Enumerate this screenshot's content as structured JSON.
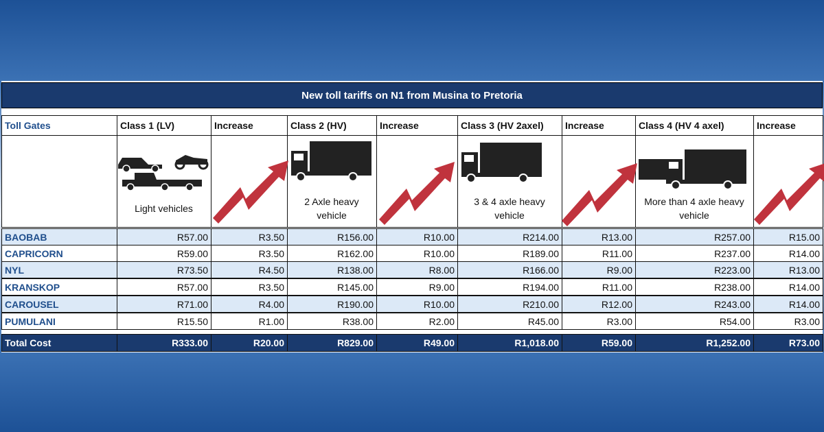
{
  "title": "New toll tariffs on N1 from Musina to Pretoria",
  "table": {
    "header": [
      "Toll Gates",
      "Class 1 (LV)",
      "Increase",
      "Class 2  (HV)",
      "Increase",
      "Class 3 (HV 2axel)",
      "Increase",
      "Class 4 (HV 4 axel)",
      "Increase"
    ],
    "vehicles": [
      "Light vehicles",
      "2 Axle heavy vehicle",
      "3 & 4 axle heavy vehicle",
      "More than 4 axle heavy vehicle"
    ],
    "class_4_label": "Class 4",
    "rows": [
      [
        "BAOBAB",
        "R57.00",
        "R3.50",
        "R156.00",
        "R10.00",
        "R214.00",
        "R13.00",
        "R257.00",
        "R15.00"
      ],
      [
        "CAPRICORN",
        "R59.00",
        "R3.50",
        "R162.00",
        "R10.00",
        "R189.00",
        "R11.00",
        "R237.00",
        "R14.00"
      ],
      [
        "NYL",
        "R73.50",
        "R4.50",
        "R138.00",
        "R8.00",
        "R166.00",
        "R9.00",
        "R223.00",
        "R13.00"
      ],
      [
        "KRANSKOP",
        "R57.00",
        "R3.50",
        "R145.00",
        "R9.00",
        "R194.00",
        "R11.00",
        "R238.00",
        "R14.00"
      ],
      [
        "CAROUSEL",
        "R71.00",
        "R4.00",
        "R190.00",
        "R10.00",
        "R210.00",
        "R12.00",
        "R243.00",
        "R14.00"
      ],
      [
        "PUMULANI",
        "R15.50",
        "R1.00",
        "R38.00",
        "R2.00",
        "R45.00",
        "R3.00",
        "R54.00",
        "R3.00"
      ]
    ],
    "total": [
      "Total Cost",
      "R333.00",
      "R20.00",
      "R829.00",
      "R49.00",
      "R1,018.00",
      "R59.00",
      "R1,252.00",
      "R73.00"
    ]
  }
}
